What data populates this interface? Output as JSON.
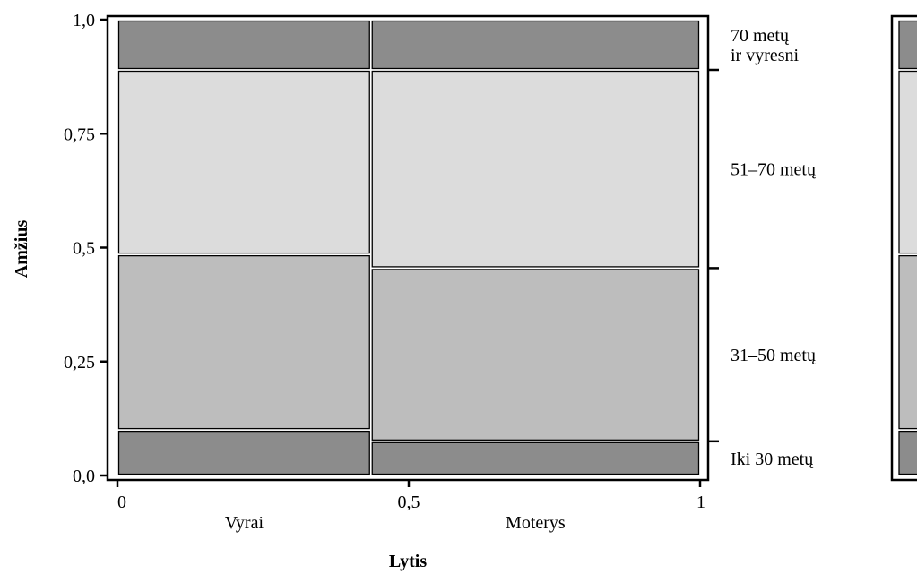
{
  "chart_data": {
    "type": "mosaic",
    "xlabel": "Lytis",
    "ylabel": "Amžius",
    "xlim": [
      0,
      1
    ],
    "ylim": [
      0,
      1
    ],
    "x_ticks": [
      {
        "value": 0,
        "label": "0"
      },
      {
        "value": 0.5,
        "label": "0,5"
      },
      {
        "value": 1,
        "label": "1"
      }
    ],
    "y_ticks": [
      {
        "value": 0,
        "label": "0,0"
      },
      {
        "value": 0.25,
        "label": "0,25"
      },
      {
        "value": 0.5,
        "label": "0,5"
      },
      {
        "value": 0.75,
        "label": "0,75"
      },
      {
        "value": 1.0,
        "label": "1,0"
      }
    ],
    "categories": [
      {
        "name": "Vyrai",
        "width": 0.435
      },
      {
        "name": "Moterys",
        "width": 0.565
      }
    ],
    "series": [
      {
        "name": "Iki 30 metų",
        "values": [
          0.1,
          0.075
        ],
        "color": "#8c8c8c"
      },
      {
        "name": "31–50 metų",
        "values": [
          0.385,
          0.38
        ],
        "color": "#bdbdbd"
      },
      {
        "name": "51–70 metų",
        "values": [
          0.405,
          0.435
        ],
        "color": "#dcdcdc"
      },
      {
        "name": "70 metų ir vyresni",
        "values": [
          0.11,
          0.11
        ],
        "color": "#8c8c8c"
      }
    ],
    "right_labels": [
      {
        "lines": [
          "70 metų",
          "ir vyresni"
        ]
      },
      {
        "lines": [
          "51–70 metų"
        ]
      },
      {
        "lines": [
          "31–50 metų"
        ]
      },
      {
        "lines": [
          "Iki 30 metų"
        ]
      }
    ],
    "grid": false,
    "legend": "right"
  }
}
